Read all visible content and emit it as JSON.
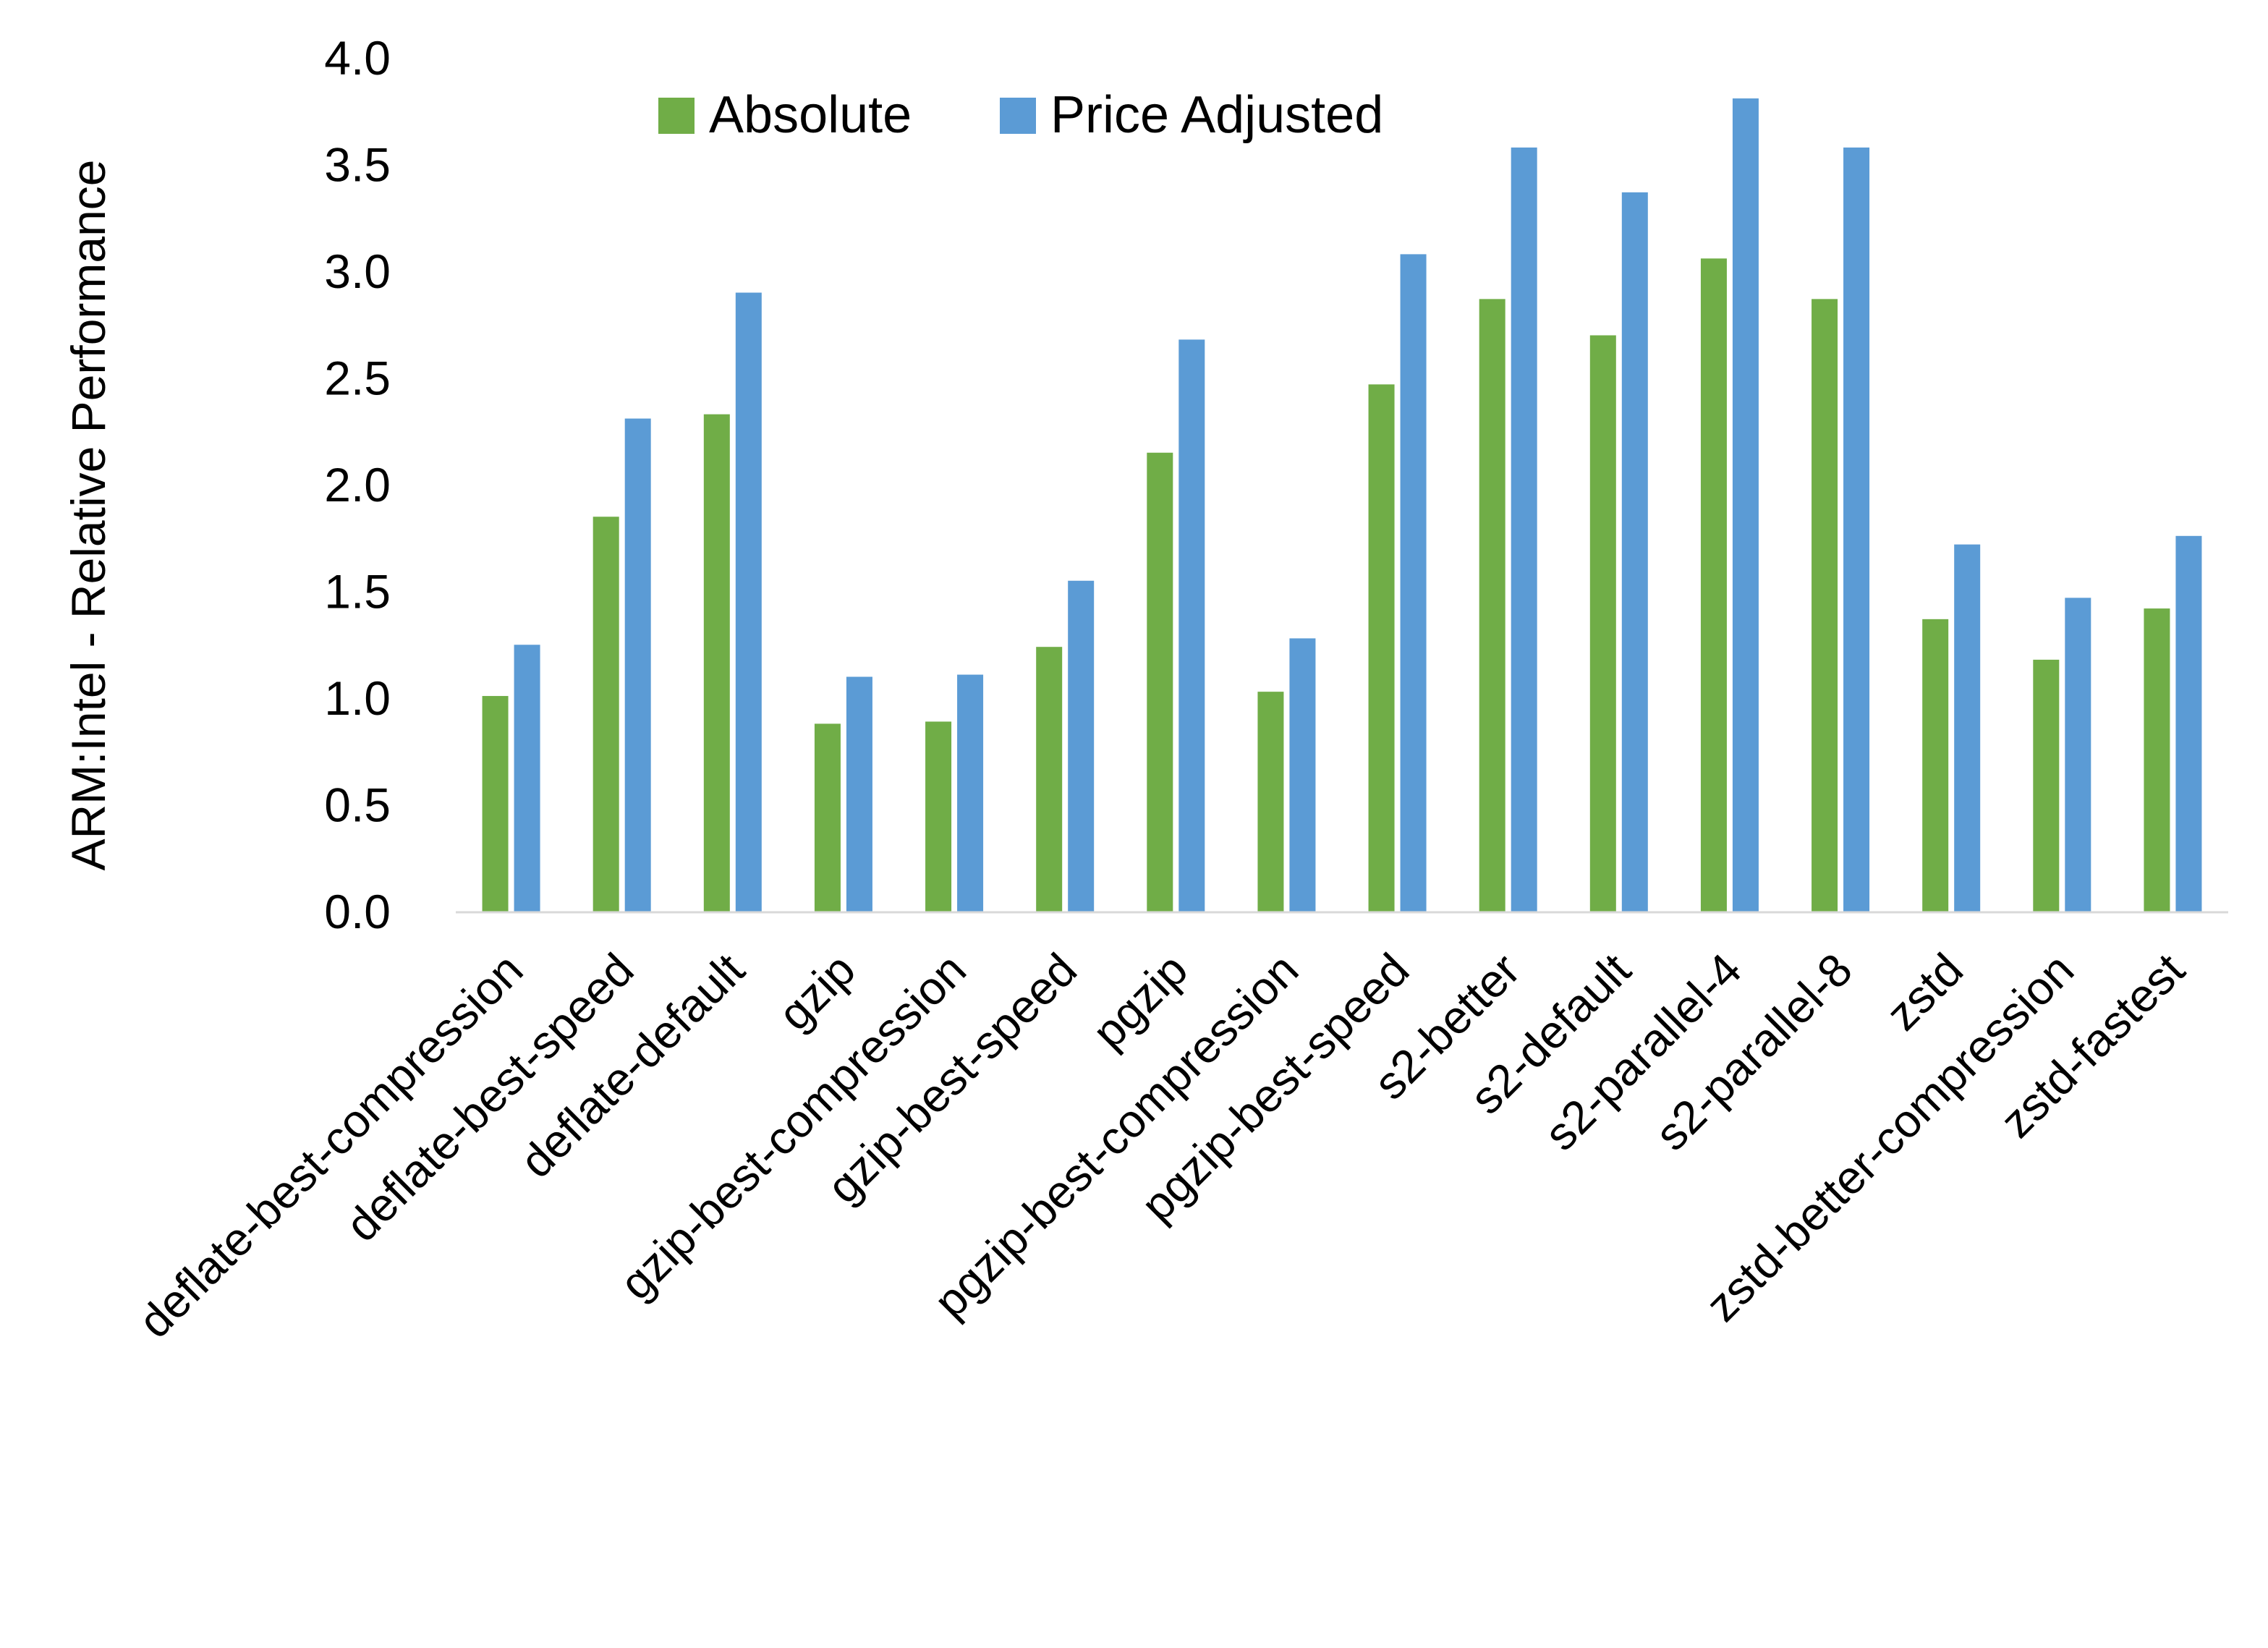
{
  "chart_data": {
    "type": "bar",
    "title": "",
    "xlabel": "",
    "ylabel": "ARM:Intel - Relative Performance",
    "ylim": [
      0,
      4.0
    ],
    "yticks": [
      "0.0",
      "0.5",
      "1.0",
      "1.5",
      "2.0",
      "2.5",
      "3.0",
      "3.5",
      "4.0"
    ],
    "grid": false,
    "legend_position": "top",
    "categories": [
      "deflate-best-compression",
      "deflate-best-speed",
      "deflate-default",
      "gzip",
      "gzip-best-compression",
      "gzip-best-speed",
      "pgzip",
      "pgzip-best-compression",
      "pgzip-best-speed",
      "s2-better",
      "s2-default",
      "s2-parallel-4",
      "s2-parallel-8",
      "zstd",
      "zstd-better-compression",
      "zstd-fastest"
    ],
    "series": [
      {
        "name": "Absolute",
        "color": "#70AD47",
        "values": [
          1.01,
          1.85,
          2.33,
          0.88,
          0.89,
          1.24,
          2.15,
          1.03,
          2.47,
          2.87,
          2.7,
          3.06,
          2.87,
          1.37,
          1.18,
          1.42
        ]
      },
      {
        "name": "Price Adjusted",
        "color": "#5B9BD5",
        "values": [
          1.25,
          2.31,
          2.9,
          1.1,
          1.11,
          1.55,
          2.68,
          1.28,
          3.08,
          3.58,
          3.37,
          3.81,
          3.58,
          1.72,
          1.47,
          1.76
        ]
      }
    ]
  }
}
